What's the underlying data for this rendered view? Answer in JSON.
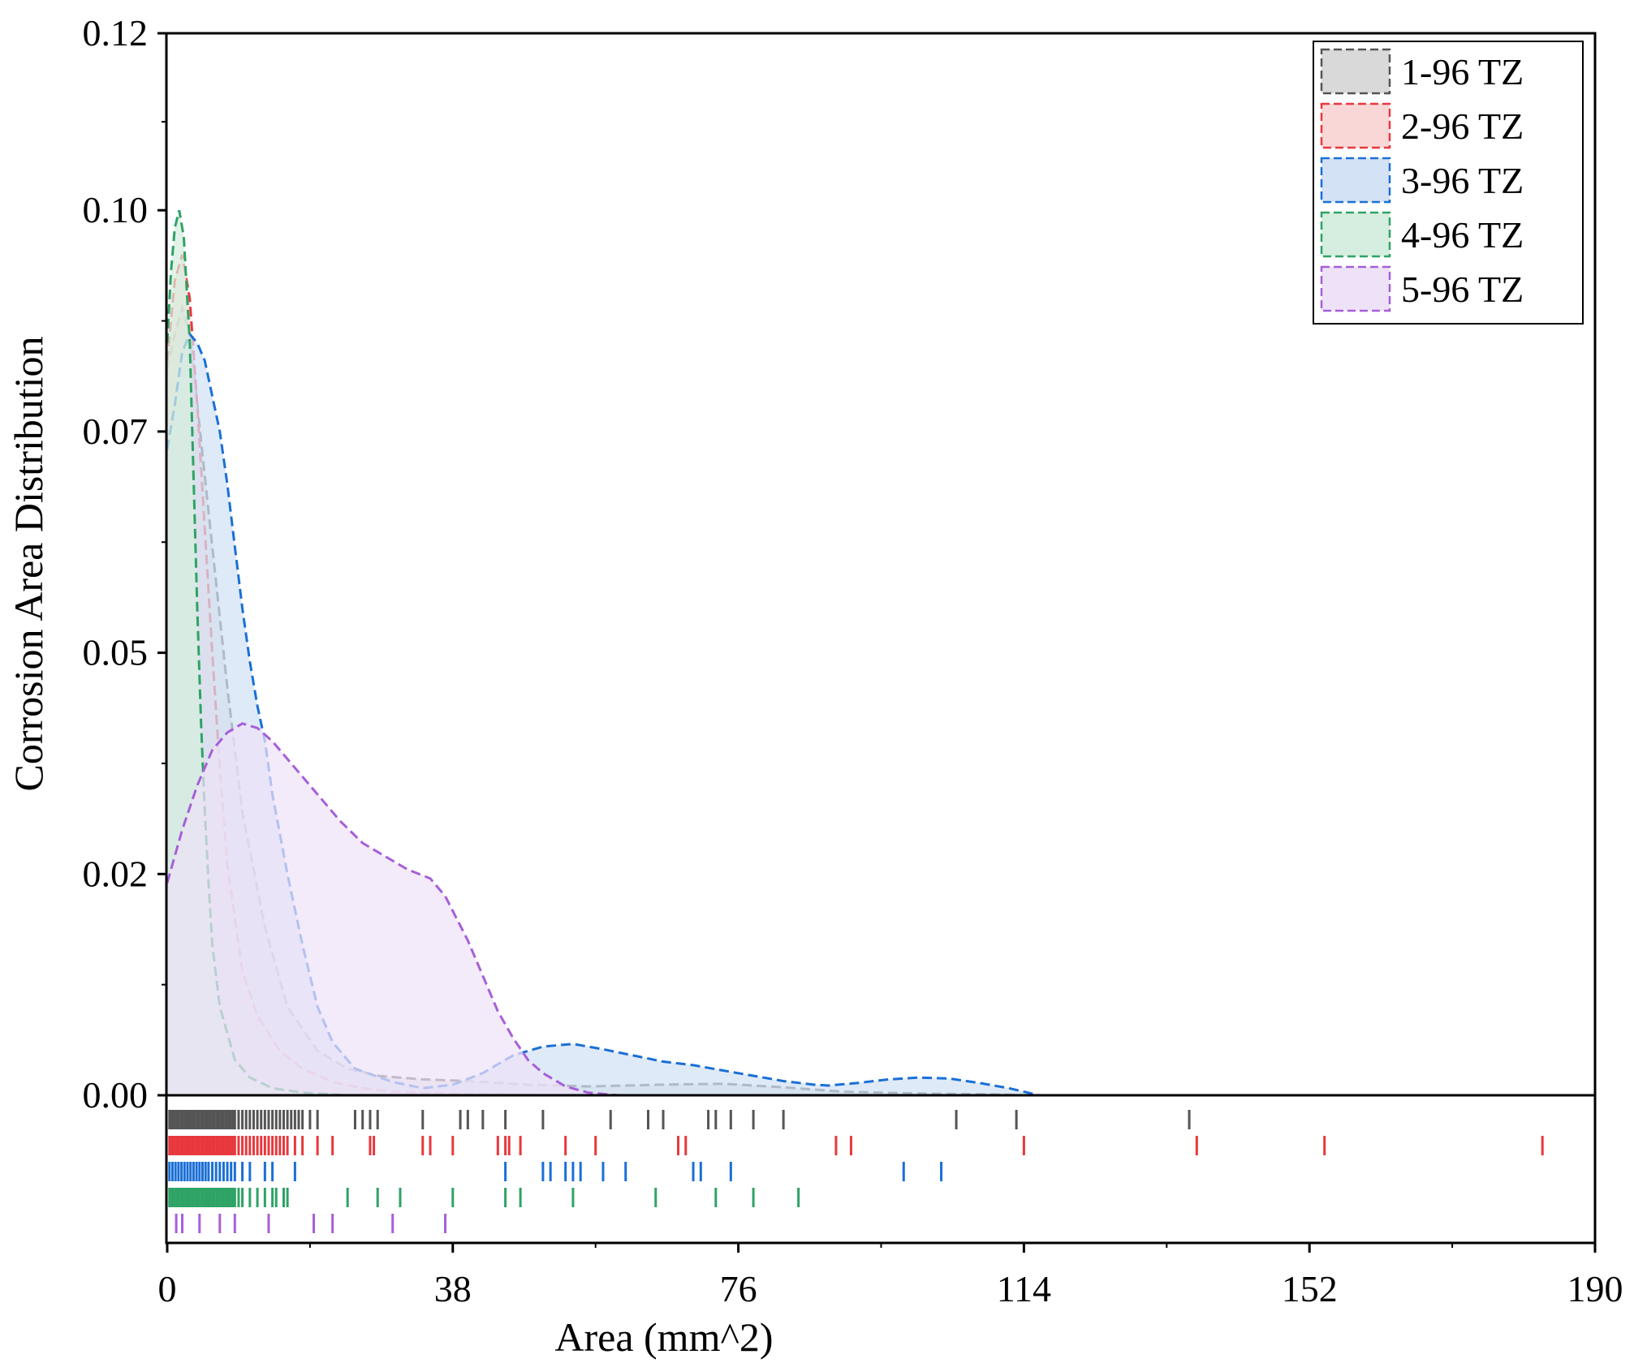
{
  "chart_data": {
    "type": "area",
    "title": "",
    "xlabel": "Area (mm^2)",
    "ylabel": "Corrosion Area Distribution",
    "xlim": [
      0,
      190
    ],
    "ylim": [
      0,
      0.12
    ],
    "x_ticks": [
      0,
      38,
      76,
      114,
      152,
      190
    ],
    "x_tick_labels": [
      "0",
      "38",
      "76",
      "114",
      "152",
      "190"
    ],
    "y_ticks": [
      0,
      0.025,
      0.05,
      0.075,
      0.1,
      0.12
    ],
    "y_tick_labels": [
      "0.00",
      "0.02",
      "0.05",
      "0.07",
      "0.10",
      "0.12"
    ],
    "legend_position": "top-right",
    "grid": false,
    "series": [
      {
        "name": "1-96 TZ",
        "color": "#555555",
        "fill": "#d9d9d9",
        "points": [
          [
            0,
            0.082
          ],
          [
            1,
            0.086
          ],
          [
            2,
            0.089
          ],
          [
            3,
            0.086
          ],
          [
            4,
            0.078
          ],
          [
            6,
            0.062
          ],
          [
            8,
            0.046
          ],
          [
            10,
            0.032
          ],
          [
            13,
            0.019
          ],
          [
            16,
            0.01
          ],
          [
            20,
            0.005
          ],
          [
            24,
            0.003
          ],
          [
            28,
            0.0022
          ],
          [
            34,
            0.0018
          ],
          [
            40,
            0.0016
          ],
          [
            48,
            0.0012
          ],
          [
            56,
            0.001
          ],
          [
            66,
            0.0012
          ],
          [
            74,
            0.0013
          ],
          [
            82,
            0.0009
          ],
          [
            90,
            0.0004
          ],
          [
            100,
            0.0002
          ],
          [
            110,
            0.0001
          ],
          [
            114,
            0
          ]
        ],
        "rug": [
          0.3,
          0.6,
          0.9,
          1.2,
          1.5,
          1.8,
          2.1,
          2.4,
          2.7,
          3.0,
          3.3,
          3.6,
          3.9,
          4.2,
          4.5,
          4.8,
          5.1,
          5.4,
          5.7,
          6.0,
          6.3,
          6.6,
          6.9,
          7.2,
          7.5,
          7.8,
          8.1,
          8.4,
          8.7,
          9.0,
          9.5,
          10,
          10.5,
          11,
          11.5,
          12,
          12.5,
          13,
          13.5,
          14,
          14.5,
          15,
          15.5,
          16,
          16.5,
          17,
          17.5,
          18,
          19,
          20,
          25,
          26,
          27,
          28,
          34,
          39,
          40,
          42,
          45,
          50,
          59,
          64,
          66,
          72,
          73,
          75,
          78,
          82,
          105,
          113,
          136
        ]
      },
      {
        "name": "2-96 TZ",
        "color": "#e8383d",
        "fill": "#f9d7d7",
        "points": [
          [
            0,
            0.083
          ],
          [
            1,
            0.092
          ],
          [
            2,
            0.095
          ],
          [
            3,
            0.09
          ],
          [
            4,
            0.078
          ],
          [
            5,
            0.064
          ],
          [
            6,
            0.05
          ],
          [
            7,
            0.037
          ],
          [
            8,
            0.026
          ],
          [
            10,
            0.014
          ],
          [
            12,
            0.009
          ],
          [
            15,
            0.005
          ],
          [
            18,
            0.003
          ],
          [
            22,
            0.0015
          ],
          [
            26,
            0.0008
          ],
          [
            30,
            0.0004
          ],
          [
            36,
            0.0002
          ],
          [
            44,
            0.0001
          ],
          [
            50,
            0
          ]
        ],
        "rug": [
          0.3,
          0.6,
          0.9,
          1.2,
          1.5,
          1.8,
          2.1,
          2.4,
          2.7,
          3.0,
          3.3,
          3.6,
          3.9,
          4.2,
          4.5,
          4.8,
          5.1,
          5.4,
          5.7,
          6.0,
          6.3,
          6.6,
          6.9,
          7.2,
          7.5,
          7.8,
          8.1,
          8.4,
          8.7,
          9.0,
          9.5,
          10,
          10.5,
          11,
          11.5,
          12,
          12.5,
          13,
          13.5,
          14,
          14.5,
          15,
          15.5,
          16,
          17,
          18,
          20,
          22,
          27,
          27.5,
          34,
          35,
          38,
          44,
          45,
          45.5,
          47,
          53,
          57,
          68,
          69,
          89,
          91,
          114,
          137,
          154,
          183
        ]
      },
      {
        "name": "3-96 TZ",
        "color": "#1a6fd6",
        "fill": "#d3e2f5",
        "points": [
          [
            0,
            0.073
          ],
          [
            1,
            0.078
          ],
          [
            2,
            0.084
          ],
          [
            3,
            0.086
          ],
          [
            4,
            0.085
          ],
          [
            5,
            0.083
          ],
          [
            6,
            0.079
          ],
          [
            7,
            0.075
          ],
          [
            8,
            0.069
          ],
          [
            9,
            0.062
          ],
          [
            10,
            0.055
          ],
          [
            11,
            0.049
          ],
          [
            12,
            0.044
          ],
          [
            13,
            0.04
          ],
          [
            14,
            0.034
          ],
          [
            16,
            0.025
          ],
          [
            18,
            0.017
          ],
          [
            20,
            0.01
          ],
          [
            22,
            0.006
          ],
          [
            25,
            0.003
          ],
          [
            30,
            0.0015
          ],
          [
            34,
            0.0008
          ],
          [
            38,
            0.0012
          ],
          [
            42,
            0.0025
          ],
          [
            46,
            0.0045
          ],
          [
            50,
            0.0055
          ],
          [
            54,
            0.0058
          ],
          [
            58,
            0.0052
          ],
          [
            62,
            0.0045
          ],
          [
            66,
            0.0038
          ],
          [
            70,
            0.0034
          ],
          [
            74,
            0.0028
          ],
          [
            78,
            0.0022
          ],
          [
            82,
            0.0016
          ],
          [
            86,
            0.0012
          ],
          [
            88,
            0.0011
          ],
          [
            92,
            0.0014
          ],
          [
            96,
            0.0018
          ],
          [
            100,
            0.002
          ],
          [
            104,
            0.0019
          ],
          [
            108,
            0.0014
          ],
          [
            112,
            0.0008
          ],
          [
            114,
            0.0004
          ],
          [
            116,
            0
          ]
        ],
        "rug": [
          0.3,
          0.7,
          1.1,
          1.5,
          1.9,
          2.3,
          2.7,
          3.1,
          3.5,
          3.9,
          4.3,
          4.7,
          5.1,
          5.5,
          6,
          6.5,
          7,
          7.5,
          8,
          8.5,
          9,
          10,
          11,
          13,
          14,
          17,
          45,
          50,
          51,
          53,
          54,
          55,
          58,
          61,
          70,
          71,
          75,
          98,
          103
        ]
      },
      {
        "name": "4-96 TZ",
        "color": "#2ea365",
        "fill": "#d6eedf",
        "points": [
          [
            0,
            0.085
          ],
          [
            0.5,
            0.093
          ],
          [
            1,
            0.098
          ],
          [
            1.6,
            0.1
          ],
          [
            2.2,
            0.097
          ],
          [
            3,
            0.085
          ],
          [
            3.5,
            0.07
          ],
          [
            4,
            0.055
          ],
          [
            4.5,
            0.042
          ],
          [
            5,
            0.032
          ],
          [
            5.5,
            0.024
          ],
          [
            6,
            0.017
          ],
          [
            7,
            0.01
          ],
          [
            8,
            0.007
          ],
          [
            9,
            0.004
          ],
          [
            11,
            0.002
          ],
          [
            14,
            0.0008
          ],
          [
            18,
            0.0003
          ],
          [
            24,
            0
          ]
        ],
        "rug": [
          0.3,
          0.6,
          0.9,
          1.2,
          1.5,
          1.8,
          2.1,
          2.4,
          2.7,
          3.0,
          3.3,
          3.6,
          3.9,
          4.2,
          4.5,
          4.8,
          5.1,
          5.4,
          5.7,
          6.0,
          6.3,
          6.6,
          6.9,
          7.2,
          7.5,
          7.8,
          8.1,
          8.4,
          8.7,
          9.0,
          9.5,
          10,
          11,
          12,
          13,
          14,
          14.5,
          15.5,
          16,
          24,
          28,
          31,
          38,
          45,
          47,
          54,
          65,
          73,
          78,
          84
        ]
      },
      {
        "name": "5-96 TZ",
        "color": "#a65fd9",
        "fill": "#eee2f8",
        "points": [
          [
            0,
            0.024
          ],
          [
            2,
            0.03
          ],
          [
            4,
            0.035
          ],
          [
            6,
            0.039
          ],
          [
            8,
            0.041
          ],
          [
            10,
            0.042
          ],
          [
            12,
            0.0415
          ],
          [
            14,
            0.04
          ],
          [
            16,
            0.038
          ],
          [
            18,
            0.036
          ],
          [
            20,
            0.034
          ],
          [
            23,
            0.031
          ],
          [
            26,
            0.0285
          ],
          [
            29,
            0.027
          ],
          [
            32,
            0.0255
          ],
          [
            35,
            0.0245
          ],
          [
            37,
            0.0225
          ],
          [
            40,
            0.0175
          ],
          [
            42,
            0.0135
          ],
          [
            44,
            0.0095
          ],
          [
            46,
            0.0065
          ],
          [
            48,
            0.004
          ],
          [
            50,
            0.0025
          ],
          [
            53,
            0.001
          ],
          [
            56,
            0.0003
          ],
          [
            60,
            0
          ]
        ],
        "rug": [
          1.2,
          2,
          4.3,
          7,
          9,
          13.5,
          19.5,
          22,
          30,
          37
        ]
      }
    ]
  }
}
